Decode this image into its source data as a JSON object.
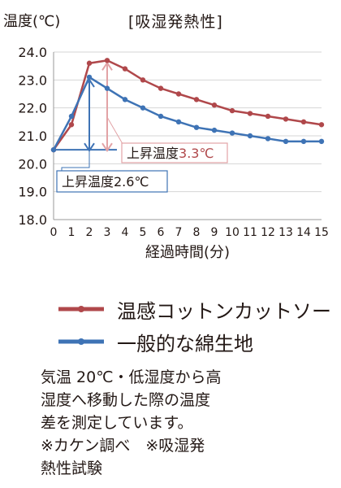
{
  "chart_data": {
    "type": "line",
    "title": "[吸湿発熱性]",
    "ylabel": "温度(℃)",
    "xlabel": "経過時間(分)",
    "x": [
      0,
      1,
      2,
      3,
      4,
      5,
      6,
      7,
      8,
      9,
      10,
      11,
      12,
      13,
      14,
      15
    ],
    "yticks": [
      "18.0",
      "19.0",
      "20.0",
      "21.0",
      "22.0",
      "23.0",
      "24.0"
    ],
    "ylim": [
      18,
      24
    ],
    "grid": true,
    "legend_position": "bottom",
    "series": [
      {
        "name": "温感コットンカットソー",
        "color": "#b0484b",
        "values": [
          20.5,
          21.4,
          23.6,
          23.7,
          23.4,
          23.0,
          22.7,
          22.5,
          22.3,
          22.1,
          21.9,
          21.8,
          21.7,
          21.6,
          21.5,
          21.4
        ]
      },
      {
        "name": "一般的な綿生地",
        "color": "#3e73b5",
        "values": [
          20.5,
          21.7,
          23.1,
          22.7,
          22.3,
          22.0,
          21.7,
          21.5,
          21.3,
          21.2,
          21.1,
          21.0,
          20.9,
          20.8,
          20.8,
          20.8
        ]
      }
    ],
    "annotations": [
      {
        "text_prefix": "上昇温度",
        "value": "3.3℃",
        "color": "#b0484b"
      },
      {
        "text": "上昇温度2.6℃",
        "color": "#3e73b5"
      }
    ]
  },
  "note_lines": [
    "気温 20℃・低湿度から高",
    "湿度へ移動した際の温度",
    "差を測定しています。",
    "※カケン調べ　※吸湿発",
    "熱性試験"
  ]
}
